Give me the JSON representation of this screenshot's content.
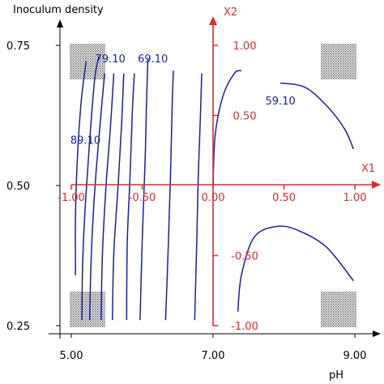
{
  "chart_data": {
    "type": "contour",
    "xlabel": "pH",
    "ylabel": "Inoculum density",
    "x_ticks": [
      "5.00",
      "7.00",
      "9.00"
    ],
    "x_tick_values": [
      5,
      7,
      9
    ],
    "y_ticks": [
      "0.25",
      "0.50",
      "0.75"
    ],
    "y_tick_values": [
      0.25,
      0.5,
      0.75
    ],
    "xlim": [
      5,
      9
    ],
    "ylim": [
      0.25,
      0.75
    ],
    "coded_axes": {
      "x1_label": "X1",
      "x2_label": "X2",
      "x1_ticks": [
        "-1.00",
        "-0.50",
        "0.00",
        "0.50",
        "1.00"
      ],
      "x1_tick_values": [
        -1,
        -0.5,
        0,
        0.5,
        1
      ],
      "x2_ticks": [
        "1.00",
        "0.50",
        "-0.50",
        "-1.00"
      ],
      "x2_tick_values": [
        1,
        0.5,
        -0.5,
        -1
      ],
      "color": "#e8282a"
    },
    "contour_color": "#1a1fa8",
    "contour_labels": [
      {
        "text": "79.10",
        "x": 5.55,
        "y": 0.727
      },
      {
        "text": "69.10",
        "x": 6.15,
        "y": 0.727
      },
      {
        "text": "59.10",
        "x": 7.95,
        "y": 0.652
      },
      {
        "text": "89.10",
        "x": 5.2,
        "y": 0.582
      }
    ],
    "contours": [
      [
        [
          5.06,
          0.34
        ],
        [
          5.06,
          0.45
        ],
        [
          5.09,
          0.56
        ],
        [
          5.14,
          0.65
        ],
        [
          5.21,
          0.722
        ]
      ],
      [
        [
          5.15,
          0.26
        ],
        [
          5.16,
          0.36
        ],
        [
          5.2,
          0.47
        ],
        [
          5.26,
          0.58
        ],
        [
          5.33,
          0.69
        ],
        [
          5.39,
          0.73
        ]
      ],
      [
        [
          5.26,
          0.26
        ],
        [
          5.28,
          0.37
        ],
        [
          5.33,
          0.49
        ],
        [
          5.4,
          0.6
        ],
        [
          5.47,
          0.7
        ]
      ],
      [
        [
          5.42,
          0.26
        ],
        [
          5.44,
          0.38
        ],
        [
          5.49,
          0.5
        ],
        [
          5.55,
          0.6
        ],
        [
          5.6,
          0.7
        ]
      ],
      [
        [
          5.58,
          0.26
        ],
        [
          5.6,
          0.38
        ],
        [
          5.66,
          0.5
        ],
        [
          5.71,
          0.61
        ],
        [
          5.74,
          0.7
        ]
      ],
      [
        [
          5.78,
          0.26
        ],
        [
          5.79,
          0.4
        ],
        [
          5.83,
          0.52
        ],
        [
          5.86,
          0.63
        ],
        [
          5.89,
          0.7
        ]
      ],
      [
        [
          5.97,
          0.26
        ],
        [
          6.0,
          0.4
        ],
        [
          6.04,
          0.54
        ],
        [
          6.06,
          0.64
        ],
        [
          6.08,
          0.725
        ]
      ],
      [
        [
          6.33,
          0.26
        ],
        [
          6.37,
          0.4
        ],
        [
          6.4,
          0.52
        ],
        [
          6.42,
          0.63
        ],
        [
          6.44,
          0.705
        ]
      ],
      [
        [
          6.74,
          0.26
        ],
        [
          6.77,
          0.4
        ],
        [
          6.79,
          0.51
        ],
        [
          6.82,
          0.62
        ],
        [
          6.84,
          0.7
        ]
      ],
      [
        [
          7.0,
          0.5
        ],
        [
          7.03,
          0.59
        ],
        [
          7.14,
          0.66
        ],
        [
          7.3,
          0.7
        ],
        [
          7.4,
          0.705
        ]
      ],
      [
        [
          7.95,
          0.683
        ],
        [
          8.3,
          0.675
        ],
        [
          8.62,
          0.64
        ],
        [
          8.86,
          0.6
        ],
        [
          8.98,
          0.565
        ]
      ],
      [
        [
          7.35,
          0.275
        ],
        [
          7.4,
          0.34
        ],
        [
          7.58,
          0.408
        ],
        [
          7.9,
          0.427
        ],
        [
          8.2,
          0.42
        ],
        [
          8.6,
          0.39
        ],
        [
          8.98,
          0.33
        ]
      ]
    ],
    "shaded_corners": [
      "top-left",
      "top-right",
      "bottom-left",
      "bottom-right"
    ],
    "grid": false
  }
}
